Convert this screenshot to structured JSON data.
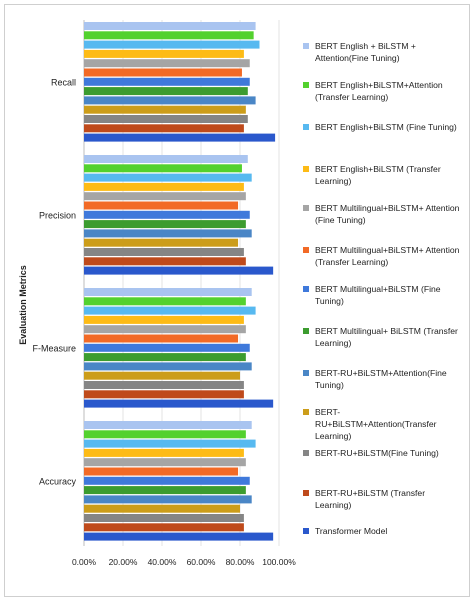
{
  "chart_data": {
    "type": "bar",
    "orientation": "horizontal",
    "ylabel": "Evaluation Metrics",
    "xlabel": "",
    "xlim": [
      0,
      1
    ],
    "xticks": [
      "0.00%",
      "20.00%",
      "40.00%",
      "60.00%",
      "80.00%",
      "100.00%"
    ],
    "grid": true,
    "legend_position": "right",
    "categories": [
      "Recall",
      "Precision",
      "F-Measure",
      "Accuracy"
    ],
    "series": [
      {
        "name": "BERT English + BiLSTM + Attention(Fine Tuning)",
        "color": "#a9c4f0",
        "values": [
          0.88,
          0.84,
          0.86,
          0.86
        ]
      },
      {
        "name": "BERT English+BiLSTM+Attention (Transfer Learning)",
        "color": "#53d12e",
        "values": [
          0.87,
          0.81,
          0.83,
          0.83
        ]
      },
      {
        "name": "BERT English+BiLSTM (Fine Tuning)",
        "color": "#57b9f0",
        "values": [
          0.9,
          0.86,
          0.88,
          0.88
        ]
      },
      {
        "name": "BERT English+BiLSTM (Transfer Learning)",
        "color": "#fdbb16",
        "values": [
          0.82,
          0.82,
          0.82,
          0.82
        ]
      },
      {
        "name": "BERT Multilingual+BiLSTM+ Attention (Fine Tuning)",
        "color": "#a5a5a5",
        "values": [
          0.85,
          0.83,
          0.83,
          0.83
        ]
      },
      {
        "name": "BERT Multilingual+BiLSTM+ Attention (Transfer Learning)",
        "color": "#f26a26",
        "values": [
          0.81,
          0.79,
          0.79,
          0.79
        ]
      },
      {
        "name": "BERT Multilingual+BiLSTM (Fine Tuning)",
        "color": "#3f79db",
        "values": [
          0.85,
          0.85,
          0.85,
          0.85
        ]
      },
      {
        "name": "BERT Multilingual+ BiLSTM (Transfer Learning)",
        "color": "#3c9c2f",
        "values": [
          0.84,
          0.83,
          0.83,
          0.83
        ]
      },
      {
        "name": "BERT-RU+BiLSTM+Attention(Fine Tuning)",
        "color": "#4a86c6",
        "values": [
          0.88,
          0.86,
          0.86,
          0.86
        ]
      },
      {
        "name": "BERT-RU+BiLSTM+Attention(Transfer Learning)",
        "color": "#cc9d1a",
        "values": [
          0.83,
          0.79,
          0.8,
          0.8
        ]
      },
      {
        "name": "BERT-RU+BiLSTM(Fine Tuning)",
        "color": "#858585",
        "values": [
          0.84,
          0.82,
          0.82,
          0.82
        ]
      },
      {
        "name": "BERT-RU+BiLSTM (Transfer Learning)",
        "color": "#bf4a1b",
        "values": [
          0.82,
          0.83,
          0.82,
          0.82
        ]
      },
      {
        "name": "Transformer Model",
        "color": "#2a58cc",
        "values": [
          0.98,
          0.97,
          0.97,
          0.97
        ]
      }
    ]
  }
}
